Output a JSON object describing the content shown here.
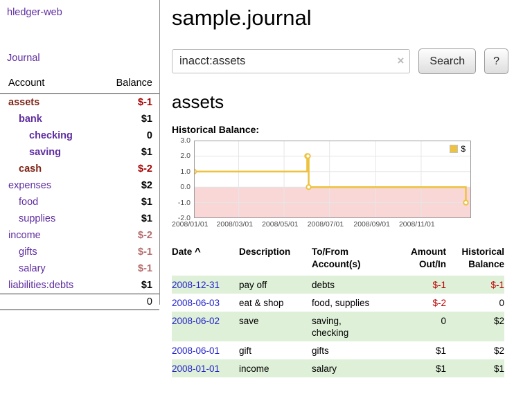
{
  "colors": {
    "purple": "#5f2da0",
    "maroon": "#7d2416",
    "dark_red": "#a40000",
    "muted_red": "#b36b6b",
    "black": "#000000",
    "neg_red": "#bb0000",
    "date_blue": "#2222cc",
    "row_green": "#dff0d8",
    "row_white": "#ffffff"
  },
  "sidebar": {
    "app_title": "hledger-web",
    "journal_label": "Journal",
    "columns": {
      "account": "Account",
      "balance": "Balance"
    },
    "accounts": [
      {
        "name": "assets",
        "indent": 0,
        "bold": true,
        "name_color": "maroon",
        "balance": "$-1",
        "balance_color": "dark_red"
      },
      {
        "name": "bank",
        "indent": 1,
        "bold": true,
        "name_color": "purple",
        "balance": "$1",
        "balance_color": "black"
      },
      {
        "name": "checking",
        "indent": 2,
        "bold": true,
        "name_color": "purple",
        "balance": "0",
        "balance_color": "black"
      },
      {
        "name": "saving",
        "indent": 2,
        "bold": true,
        "name_color": "purple",
        "balance": "$1",
        "balance_color": "black"
      },
      {
        "name": "cash",
        "indent": 1,
        "bold": true,
        "name_color": "maroon",
        "balance": "$-2",
        "balance_color": "dark_red"
      },
      {
        "name": "expenses",
        "indent": 0,
        "bold": false,
        "name_color": "purple",
        "balance": "$2",
        "balance_color": "black"
      },
      {
        "name": "food",
        "indent": 1,
        "bold": false,
        "name_color": "purple",
        "balance": "$1",
        "balance_color": "black"
      },
      {
        "name": "supplies",
        "indent": 1,
        "bold": false,
        "name_color": "purple",
        "balance": "$1",
        "balance_color": "black"
      },
      {
        "name": "income",
        "indent": 0,
        "bold": false,
        "name_color": "purple",
        "balance": "$-2",
        "balance_color": "muted_red"
      },
      {
        "name": "gifts",
        "indent": 1,
        "bold": false,
        "name_color": "purple",
        "balance": "$-1",
        "balance_color": "muted_red"
      },
      {
        "name": "salary",
        "indent": 1,
        "bold": false,
        "name_color": "purple",
        "balance": "$-1",
        "balance_color": "muted_red"
      },
      {
        "name": "liabilities:debts",
        "indent": 0,
        "bold": false,
        "name_color": "purple",
        "balance": "$1",
        "balance_color": "black"
      }
    ],
    "total": "0"
  },
  "main": {
    "title": "sample.journal",
    "search": {
      "value": "inacct:assets",
      "clear_icon": "×",
      "button_label": "Search",
      "help_label": "?"
    },
    "account_heading": "assets",
    "register": {
      "headers": {
        "date": "Date",
        "sort_icon": "^",
        "description": "Description",
        "account_l1": "To/From",
        "account_l2": "Account(s)",
        "amount_l1": "Amount",
        "amount_l2": "Out/In",
        "balance_l1": "Historical",
        "balance_l2": "Balance"
      },
      "rows": [
        {
          "date": "2008-12-31",
          "description": "pay off",
          "accounts": "debts",
          "amount": "$-1",
          "amount_color": "neg_red",
          "balance": "$-1",
          "balance_color": "neg_red",
          "shaded": true
        },
        {
          "date": "2008-06-03",
          "description": "eat & shop",
          "accounts": "food, supplies",
          "amount": "$-2",
          "amount_color": "neg_red",
          "balance": "0",
          "balance_color": "black",
          "shaded": false
        },
        {
          "date": "2008-06-02",
          "description": "save",
          "accounts": "saving,\nchecking",
          "amount": "0",
          "amount_color": "black",
          "balance": "$2",
          "balance_color": "black",
          "shaded": true
        },
        {
          "date": "2008-06-01",
          "description": "gift",
          "accounts": "gifts",
          "amount": "$1",
          "amount_color": "black",
          "balance": "$2",
          "balance_color": "black",
          "shaded": false
        },
        {
          "date": "2008-01-01",
          "description": "income",
          "accounts": "salary",
          "amount": "$1",
          "amount_color": "black",
          "balance": "$1",
          "balance_color": "black",
          "shaded": true
        }
      ]
    }
  },
  "chart_data": {
    "type": "line",
    "title": "Historical Balance:",
    "legend": {
      "label": "$",
      "position": "top-right"
    },
    "series": [
      {
        "name": "$",
        "color": "#edc240",
        "step": true,
        "points": [
          {
            "date": "2008-01-01",
            "x": 0,
            "y": 1
          },
          {
            "date": "2008-06-01",
            "x": 152,
            "y": 2
          },
          {
            "date": "2008-06-02",
            "x": 153,
            "y": 2
          },
          {
            "date": "2008-06-03",
            "x": 154,
            "y": 0
          },
          {
            "date": "2008-12-31",
            "x": 365,
            "y": -1
          }
        ]
      }
    ],
    "x_ticks": [
      {
        "x": 0,
        "label": "2008/01/01"
      },
      {
        "x": 60,
        "label": "2008/03/01"
      },
      {
        "x": 121,
        "label": "2008/05/01"
      },
      {
        "x": 182,
        "label": "2008/07/01"
      },
      {
        "x": 244,
        "label": "2008/09/01"
      },
      {
        "x": 305,
        "label": "2008/11/01"
      }
    ],
    "y_ticks": [
      {
        "v": 3,
        "label": "3.0"
      },
      {
        "v": 2,
        "label": "2.0"
      },
      {
        "v": 1,
        "label": "1.0"
      },
      {
        "v": 0,
        "label": "0.0"
      },
      {
        "v": -1,
        "label": "-1.0"
      },
      {
        "v": -2,
        "label": "-2.0"
      }
    ],
    "xlim": [
      0,
      372
    ],
    "ylim": [
      -2,
      3
    ],
    "below_zero_fill": "#f9d7d7",
    "grid_color": "#e6e6e6",
    "border_color": "#999999"
  }
}
